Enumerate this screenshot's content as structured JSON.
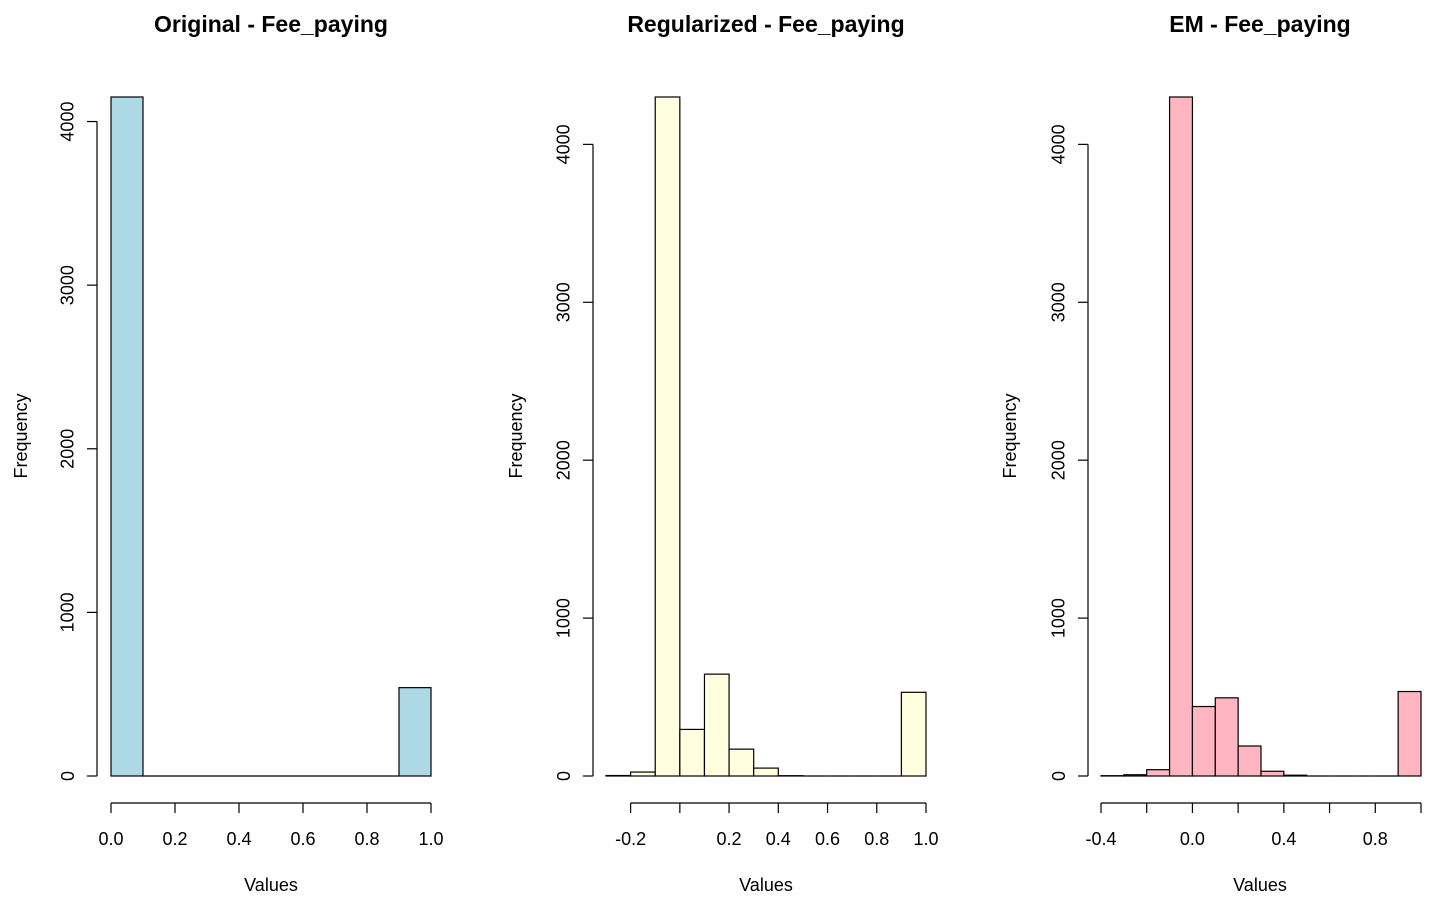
{
  "chart_data": [
    {
      "type": "bar",
      "title": "Original - Fee_paying",
      "xlabel": "Values",
      "ylabel": "Frequency",
      "bar_color": "#add8e6",
      "xlim": [
        0.0,
        1.0
      ],
      "ylim": [
        0,
        4150
      ],
      "x_ticks": [
        0.0,
        0.2,
        0.4,
        0.6,
        0.8,
        1.0
      ],
      "x_tick_labels": [
        "0.0",
        "0.2",
        "0.4",
        "0.6",
        "0.8",
        "1.0"
      ],
      "y_ticks": [
        0,
        1000,
        2000,
        3000,
        4000
      ],
      "y_tick_labels": [
        "0",
        "1000",
        "2000",
        "3000",
        "4000"
      ],
      "bins": [
        {
          "x0": 0.0,
          "x1": 0.1,
          "count": 4150
        },
        {
          "x0": 0.1,
          "x1": 0.2,
          "count": 0
        },
        {
          "x0": 0.2,
          "x1": 0.3,
          "count": 0
        },
        {
          "x0": 0.3,
          "x1": 0.4,
          "count": 0
        },
        {
          "x0": 0.4,
          "x1": 0.5,
          "count": 0
        },
        {
          "x0": 0.5,
          "x1": 0.6,
          "count": 0
        },
        {
          "x0": 0.6,
          "x1": 0.7,
          "count": 0
        },
        {
          "x0": 0.7,
          "x1": 0.8,
          "count": 0
        },
        {
          "x0": 0.8,
          "x1": 0.9,
          "count": 0
        },
        {
          "x0": 0.9,
          "x1": 1.0,
          "count": 540
        }
      ]
    },
    {
      "type": "bar",
      "title": "Regularized - Fee_paying",
      "xlabel": "Values",
      "ylabel": "Frequency",
      "bar_color": "#ffffe0",
      "xlim": [
        -0.3,
        1.0
      ],
      "ylim": [
        0,
        4300
      ],
      "x_ticks": [
        -0.2,
        0.0,
        0.2,
        0.4,
        0.6,
        0.8,
        1.0
      ],
      "x_tick_labels": [
        "-0.2",
        "",
        "0.2",
        "0.4",
        "0.6",
        "0.8",
        "1.0"
      ],
      "y_ticks": [
        0,
        1000,
        2000,
        3000,
        4000
      ],
      "y_tick_labels": [
        "0",
        "1000",
        "2000",
        "3000",
        "4000"
      ],
      "bins": [
        {
          "x0": -0.3,
          "x1": -0.2,
          "count": 3
        },
        {
          "x0": -0.2,
          "x1": -0.1,
          "count": 25
        },
        {
          "x0": -0.1,
          "x1": 0.0,
          "count": 4300
        },
        {
          "x0": 0.0,
          "x1": 0.1,
          "count": 295
        },
        {
          "x0": 0.1,
          "x1": 0.2,
          "count": 645
        },
        {
          "x0": 0.2,
          "x1": 0.3,
          "count": 170
        },
        {
          "x0": 0.3,
          "x1": 0.4,
          "count": 50
        },
        {
          "x0": 0.4,
          "x1": 0.5,
          "count": 2
        },
        {
          "x0": 0.5,
          "x1": 0.6,
          "count": 0
        },
        {
          "x0": 0.6,
          "x1": 0.7,
          "count": 0
        },
        {
          "x0": 0.7,
          "x1": 0.8,
          "count": 0
        },
        {
          "x0": 0.8,
          "x1": 0.9,
          "count": 0
        },
        {
          "x0": 0.9,
          "x1": 1.0,
          "count": 530
        }
      ]
    },
    {
      "type": "bar",
      "title": "EM - Fee_paying",
      "xlabel": "Values",
      "ylabel": "Frequency",
      "bar_color": "#ffb6c1",
      "xlim": [
        -0.4,
        1.0
      ],
      "ylim": [
        0,
        4300
      ],
      "x_ticks": [
        -0.4,
        -0.2,
        0.0,
        0.2,
        0.4,
        0.6,
        0.8,
        1.0
      ],
      "x_tick_labels": [
        "-0.4",
        "",
        "0.0",
        "",
        "0.4",
        "",
        "0.8",
        ""
      ],
      "y_ticks": [
        0,
        1000,
        2000,
        3000,
        4000
      ],
      "y_tick_labels": [
        "0",
        "1000",
        "2000",
        "3000",
        "4000"
      ],
      "bins": [
        {
          "x0": -0.4,
          "x1": -0.3,
          "count": 2
        },
        {
          "x0": -0.3,
          "x1": -0.2,
          "count": 8
        },
        {
          "x0": -0.2,
          "x1": -0.1,
          "count": 40
        },
        {
          "x0": -0.1,
          "x1": 0.0,
          "count": 4300
        },
        {
          "x0": 0.0,
          "x1": 0.1,
          "count": 440
        },
        {
          "x0": 0.1,
          "x1": 0.2,
          "count": 495
        },
        {
          "x0": 0.2,
          "x1": 0.3,
          "count": 190
        },
        {
          "x0": 0.3,
          "x1": 0.4,
          "count": 30
        },
        {
          "x0": 0.4,
          "x1": 0.5,
          "count": 5
        },
        {
          "x0": 0.5,
          "x1": 0.6,
          "count": 0
        },
        {
          "x0": 0.6,
          "x1": 0.7,
          "count": 0
        },
        {
          "x0": 0.7,
          "x1": 0.8,
          "count": 0
        },
        {
          "x0": 0.8,
          "x1": 0.9,
          "count": 0
        },
        {
          "x0": 0.9,
          "x1": 1.0,
          "count": 535
        }
      ]
    }
  ]
}
